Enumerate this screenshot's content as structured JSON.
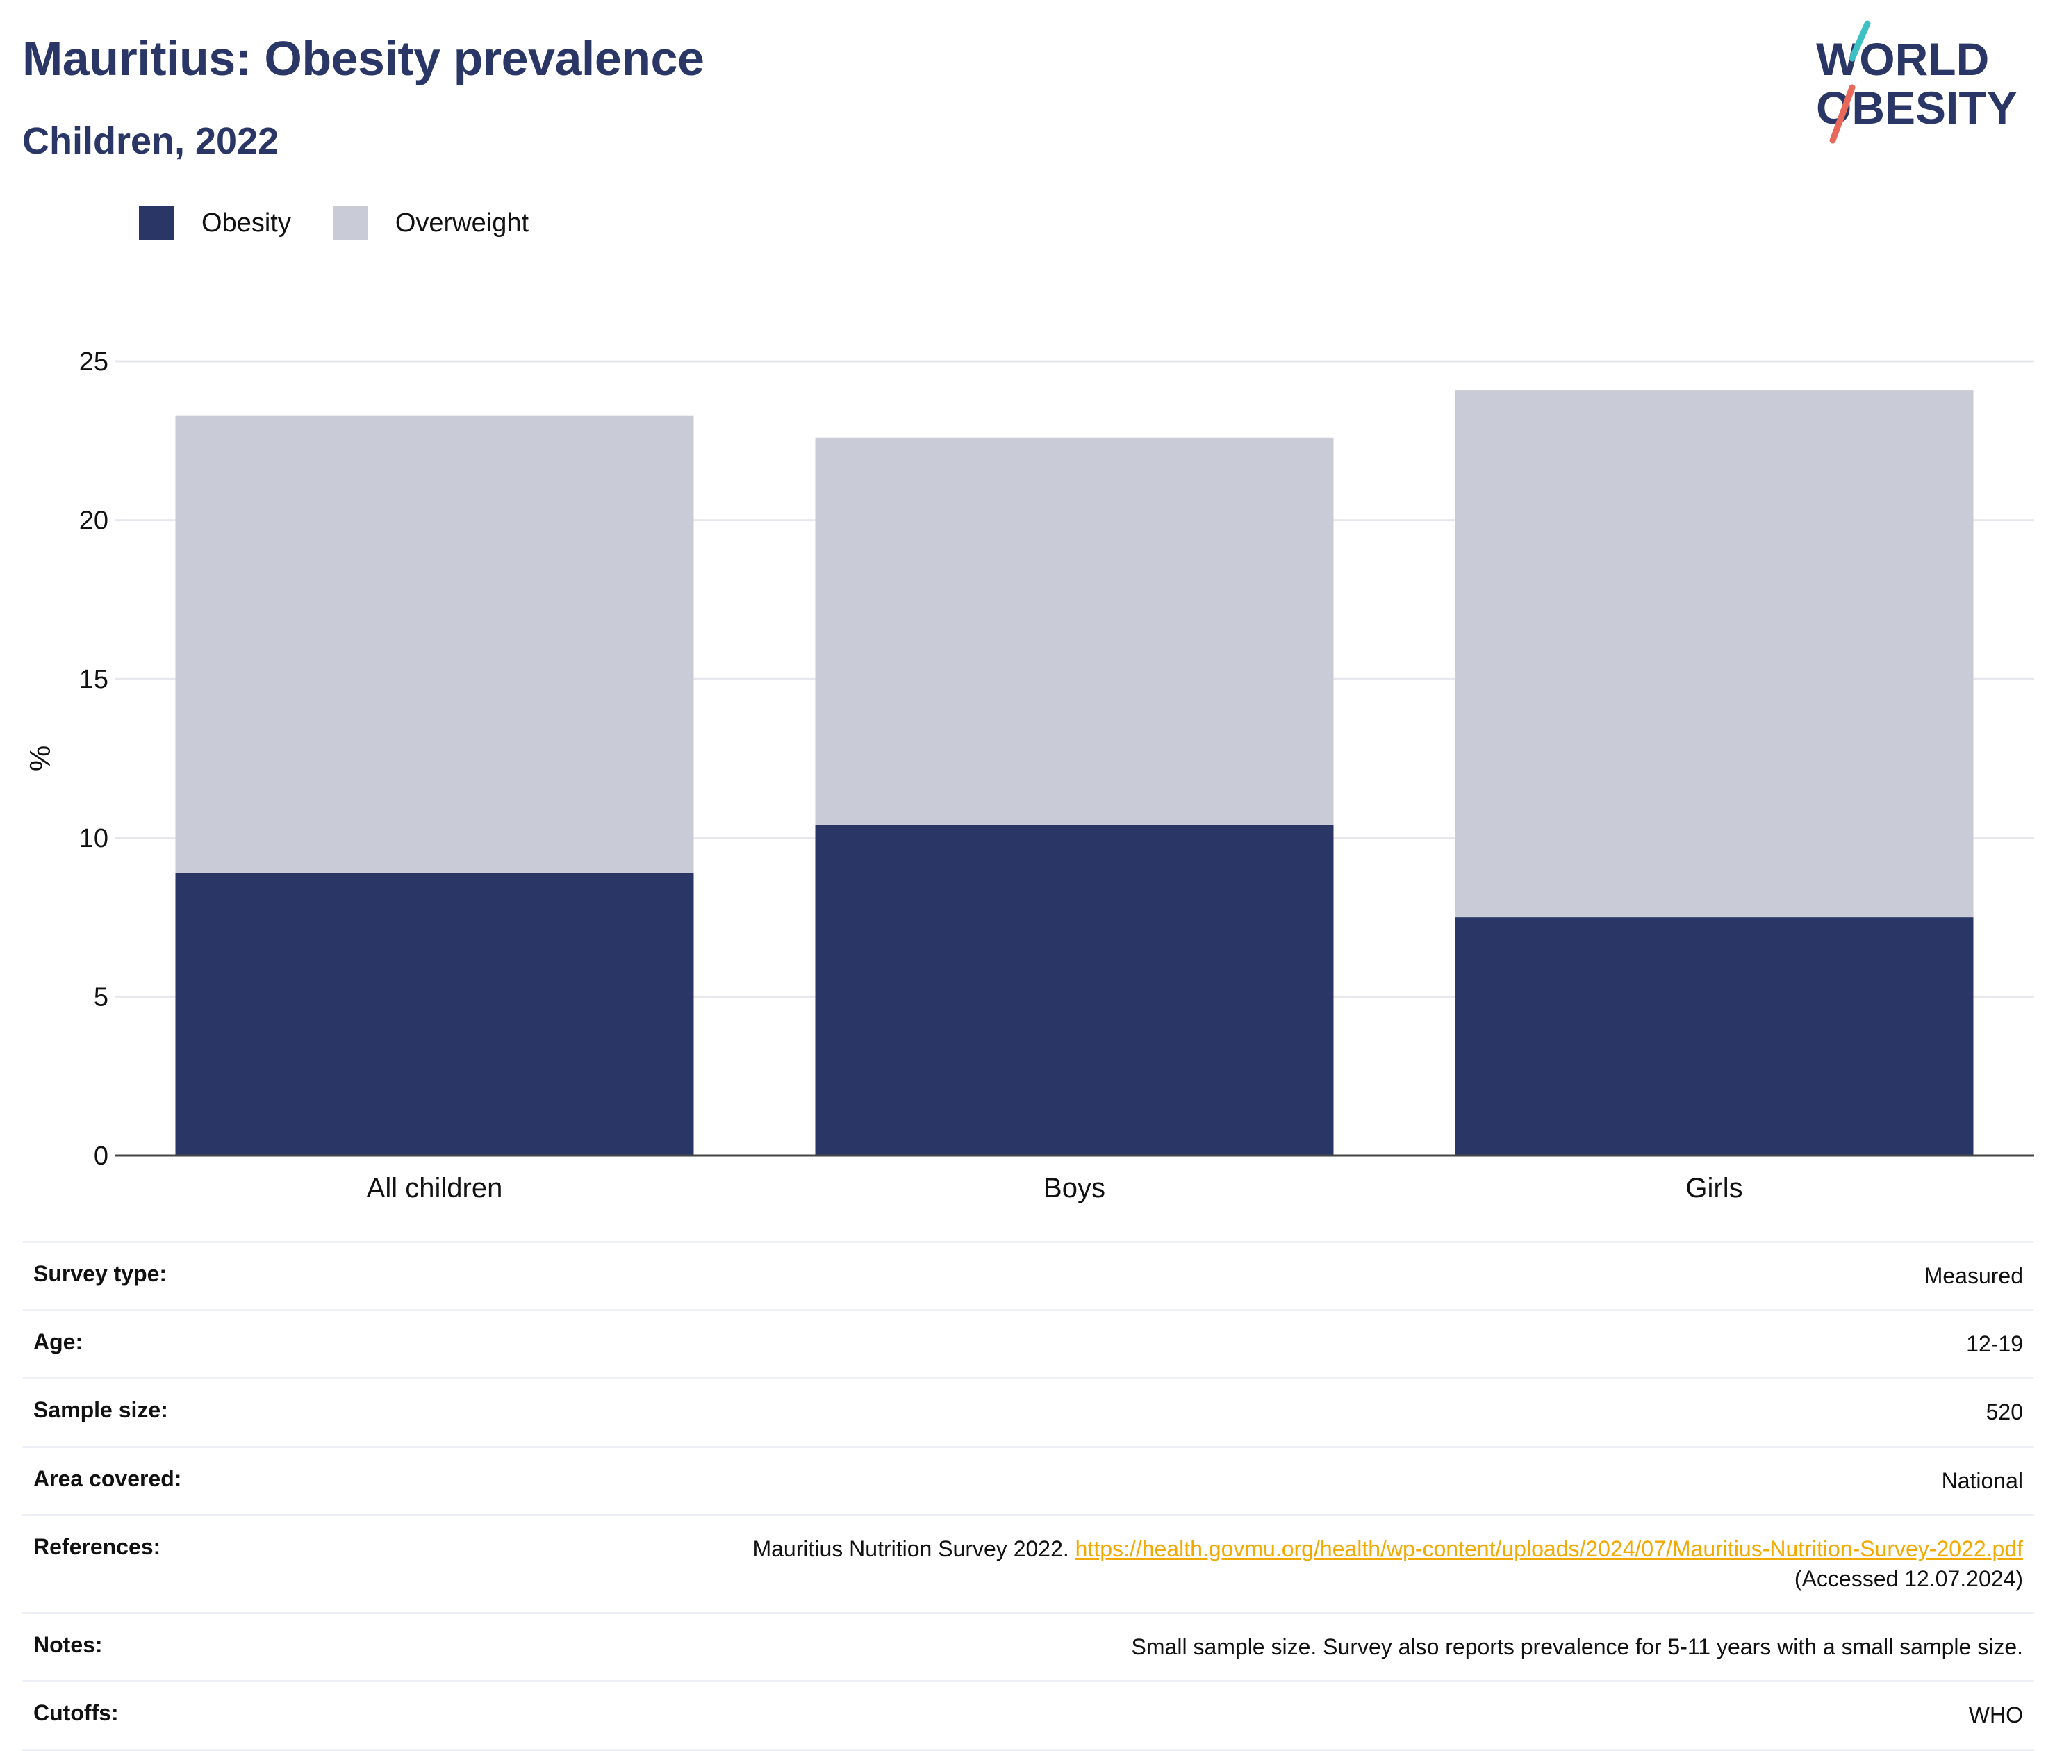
{
  "header": {
    "title": "Mauritius: Obesity prevalence",
    "subtitle": "Children, 2022"
  },
  "logo": {
    "line1": "WORLD",
    "line2": "OBESITY",
    "colors": {
      "text": "#2a3766",
      "slash_top": "#3cc0c4",
      "slash_bottom": "#e8685a"
    }
  },
  "legend": [
    {
      "label": "Obesity",
      "color": "#2a3766"
    },
    {
      "label": "Overweight",
      "color": "#c9cbd6"
    }
  ],
  "chart_data": {
    "type": "bar",
    "stacked": true,
    "categories": [
      "All children",
      "Boys",
      "Girls"
    ],
    "series": [
      {
        "name": "Obesity",
        "values": [
          8.9,
          10.4,
          7.5
        ],
        "color": "#2a3766"
      },
      {
        "name": "Overweight",
        "values": [
          14.4,
          12.2,
          16.6
        ],
        "color": "#c9cbd6"
      }
    ],
    "ylabel": "%",
    "ylim": [
      0,
      25
    ],
    "yticks": [
      "0",
      "5",
      "10",
      "15",
      "20",
      "25"
    ],
    "grid": true,
    "legend_position": "top-left"
  },
  "info": {
    "survey_type": {
      "label": "Survey type:",
      "value": "Measured"
    },
    "age": {
      "label": "Age:",
      "value": "12-19"
    },
    "sample_size": {
      "label": "Sample size:",
      "value": "520"
    },
    "area_covered": {
      "label": "Area covered:",
      "value": "National"
    },
    "references": {
      "label": "References:",
      "text": "Mauritius Nutrition Survey 2022.",
      "link": "https://health.govmu.org/health/wp-content/uploads/2024/07/Mauritius-Nutrition-Survey-2022.pdf",
      "accessed": "(Accessed 12.07.2024)"
    },
    "notes": {
      "label": "Notes:",
      "value": "Small sample size. Survey also reports prevalence for 5-11 years with a small sample size."
    },
    "cutoffs": {
      "label": "Cutoffs:",
      "value": "WHO"
    }
  }
}
